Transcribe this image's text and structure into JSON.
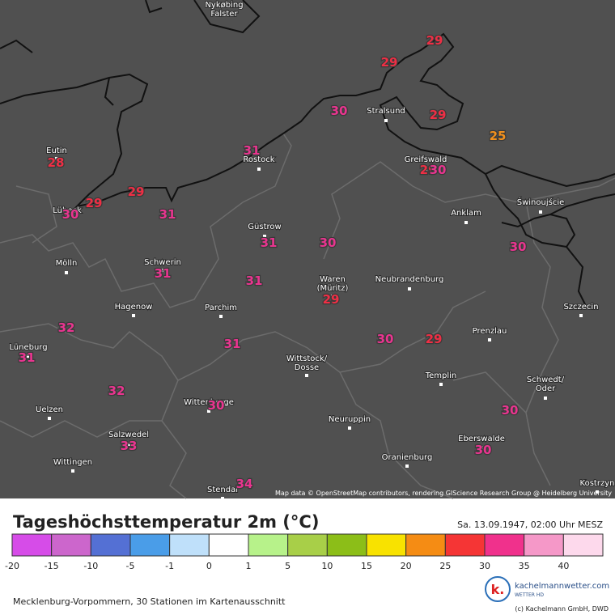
{
  "map": {
    "attribution": "Map data © OpenStreetMap contributors, rendering GIScience Research Group @ Heidelberg University",
    "cities": [
      "Nykøbing\nFalster",
      "Eutin",
      "Lübeck",
      "Mölln",
      "Schwerin",
      "Hagenow",
      "Parchim",
      "Güstrow",
      "Rostock",
      "Stralsund",
      "Greifswald",
      "Anklam",
      "Świnoujście",
      "Waren\n(Müritz)",
      "Neubrandenburg",
      "Szczecin",
      "Prenzlau",
      "Wittstock/\nDosse",
      "Templin",
      "Schwedt/\nOder",
      "Lüneburg",
      "Uelzen",
      "Wittenberge",
      "Salzwedel",
      "Neuruppin",
      "Eberswalde",
      "Wittingen",
      "Oranienburg",
      "Stendal",
      "Kostrzyn"
    ],
    "temperatures": [
      29,
      29,
      30,
      29,
      25,
      31,
      28,
      29,
      29,
      30,
      31,
      29,
      30,
      31,
      30,
      30,
      31,
      31,
      29,
      32,
      30,
      29,
      31,
      31,
      32,
      30,
      30,
      33,
      30,
      34
    ],
    "temperature_colors": [
      "#ee2f45",
      "#ee2f45",
      "#e8358f",
      "#ee2f45",
      "#f0901e",
      "#e8358f",
      "#ee2f45",
      "#ee2f45",
      "#ee2f45",
      "#e8358f",
      "#e8358f",
      "#ee2f45",
      "#e8358f",
      "#e8358f",
      "#e8358f",
      "#e8358f",
      "#e8358f",
      "#e8358f",
      "#ee2f45",
      "#e8358f",
      "#e8358f",
      "#ee2f45",
      "#e8358f",
      "#e8358f",
      "#e8358f",
      "#e8358f",
      "#e8358f",
      "#e8358f",
      "#e8358f",
      "#e8358f"
    ]
  },
  "legend": {
    "title": "Tageshöchsttemperatur 2m (°C)",
    "date": "Sa. 13.09.1947, 02:00 Uhr MESZ",
    "ticks": [
      -20,
      -15,
      -10,
      -5,
      -1,
      0,
      1,
      5,
      10,
      15,
      20,
      25,
      30,
      35,
      40
    ],
    "colors": [
      "#d64ce8",
      "#cc66cc",
      "#5470d4",
      "#4a9de8",
      "#bfe0fa",
      "#ffffff",
      "#b7f28a",
      "#a8cf48",
      "#8cbe18",
      "#f8e200",
      "#f58c14",
      "#f53535",
      "#f0318c",
      "#f598c8",
      "#fdd9ec"
    ]
  },
  "footer": {
    "note": "Mecklenburg-Vorpommern, 30 Stationen im Kartenausschnitt",
    "brand": "kachelmannwetter.com",
    "brand_sub": "WETTER HD",
    "copyright": "(c) Kachelmann GmbH, DWD"
  }
}
